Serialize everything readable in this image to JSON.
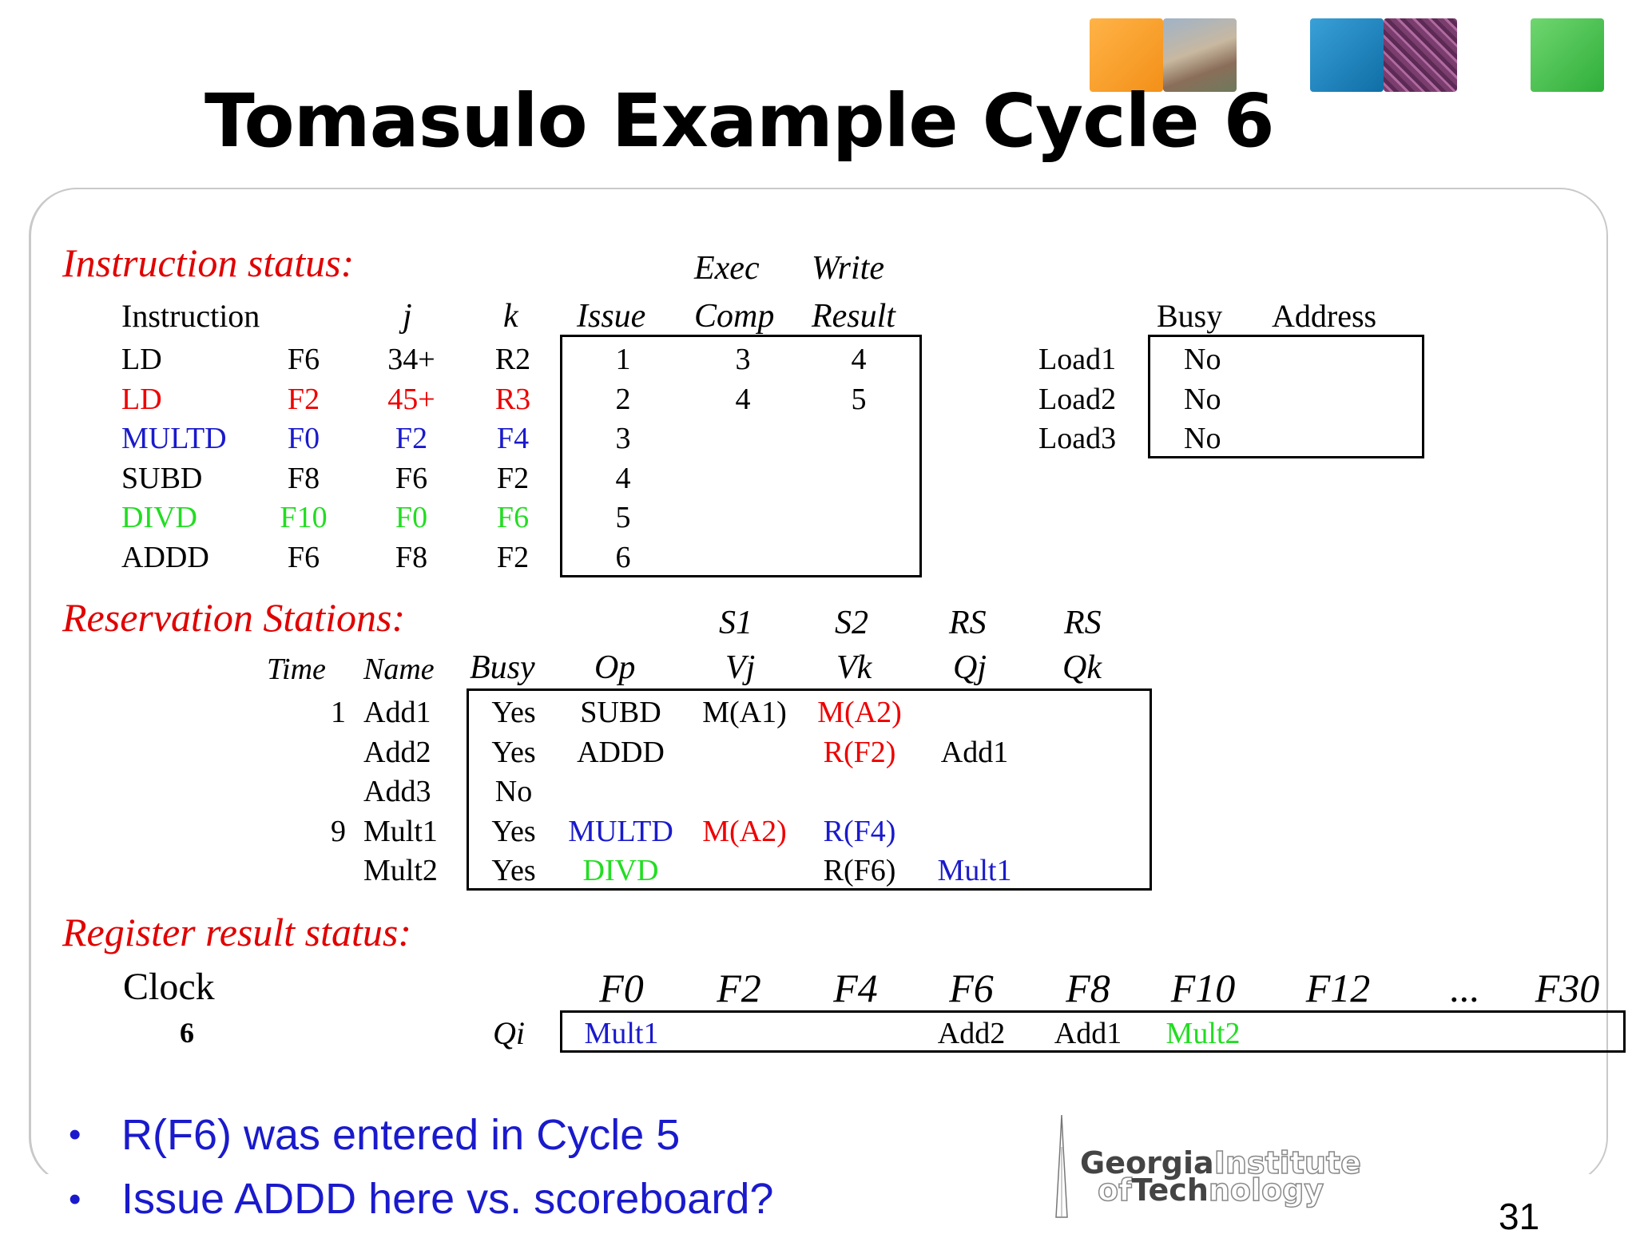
{
  "title": "Tomasulo Example Cycle 6",
  "colors": {
    "red": "#ee0000",
    "blue": "#1a1acc",
    "magenta": "#e000e0",
    "green": "#22dd22",
    "black": "#000000"
  },
  "instruction_status": {
    "label": "Instruction status:",
    "headers": {
      "instruction": "Instruction",
      "j": "j",
      "k": "k",
      "issue": "Issue",
      "exec_top": "Exec",
      "exec_bottom": "Comp",
      "write_top": "Write",
      "write_bottom": "Result"
    },
    "rows": [
      {
        "op": "LD",
        "dest": "F6",
        "j": "34+",
        "k": "R2",
        "issue": "1",
        "exec": "3",
        "write": "4",
        "color": "black"
      },
      {
        "op": "LD",
        "dest": "F2",
        "j": "45+",
        "k": "R3",
        "issue": "2",
        "exec": "4",
        "write": "5",
        "color": "red"
      },
      {
        "op": "MULTD",
        "dest": "F0",
        "j": "F2",
        "k": "F4",
        "issue": "3",
        "exec": "",
        "write": "",
        "color": "blue"
      },
      {
        "op": "SUBD",
        "dest": "F8",
        "j": "F6",
        "k": "F2",
        "issue": "4",
        "exec": "",
        "write": "",
        "color": "mag"
      },
      {
        "op": "DIVD",
        "dest": "F10",
        "j": "F0",
        "k": "F6",
        "issue": "5",
        "exec": "",
        "write": "",
        "color": "green"
      },
      {
        "op": "ADDD",
        "dest": "F6",
        "j": "F8",
        "k": "F2",
        "issue": "6",
        "exec": "",
        "write": "",
        "color": "black"
      }
    ]
  },
  "load_buffers": {
    "headers": {
      "busy": "Busy",
      "address": "Address"
    },
    "rows": [
      {
        "name": "Load1",
        "busy": "No",
        "address": ""
      },
      {
        "name": "Load2",
        "busy": "No",
        "address": ""
      },
      {
        "name": "Load3",
        "busy": "No",
        "address": ""
      }
    ]
  },
  "reservation_stations": {
    "label": "Reservation Stations:",
    "headers": {
      "time": "Time",
      "name": "Name",
      "busy": "Busy",
      "op": "Op",
      "s1": "S1",
      "vj": "Vj",
      "s2": "S2",
      "vk": "Vk",
      "rs1": "RS",
      "qj": "Qj",
      "rs2": "RS",
      "qk": "Qk"
    },
    "rows": [
      {
        "time": "1",
        "name": "Add1",
        "busy": "Yes",
        "op": "SUBD",
        "op_color": "mag",
        "vj": "M(A1)",
        "vj_color": "black",
        "vk": "M(A2)",
        "vk_color": "red",
        "qj": "",
        "qj_color": "black",
        "qk": ""
      },
      {
        "time": "",
        "name": "Add2",
        "busy": "Yes",
        "op": "ADDD",
        "op_color": "black",
        "vj": "",
        "vj_color": "black",
        "vk": "R(F2)",
        "vk_color": "red",
        "qj": "Add1",
        "qj_color": "mag",
        "qk": ""
      },
      {
        "time": "",
        "name": "Add3",
        "busy": "No",
        "op": "",
        "op_color": "black",
        "vj": "",
        "vj_color": "black",
        "vk": "",
        "vk_color": "black",
        "qj": "",
        "qj_color": "black",
        "qk": ""
      },
      {
        "time": "9",
        "name": "Mult1",
        "busy": "Yes",
        "op": "MULTD",
        "op_color": "blue",
        "vj": "M(A2)",
        "vj_color": "red",
        "vk": "R(F4)",
        "vk_color": "blue",
        "qj": "",
        "qj_color": "black",
        "qk": ""
      },
      {
        "time": "",
        "name": "Mult2",
        "busy": "Yes",
        "op": "DIVD",
        "op_color": "green",
        "vj": "",
        "vj_color": "black",
        "vk": "R(F6)",
        "vk_color": "black",
        "qj": "Mult1",
        "qj_color": "blue",
        "qk": ""
      }
    ]
  },
  "register_status": {
    "label": "Register result status:",
    "clock_label": "Clock",
    "clock_value": "6",
    "qi_label": "Qi",
    "registers": [
      "F0",
      "F2",
      "F4",
      "F6",
      "F8",
      "F10",
      "F12",
      "...",
      "F30"
    ],
    "values": [
      {
        "text": "Mult1",
        "color": "blue"
      },
      {
        "text": "",
        "color": "black"
      },
      {
        "text": "",
        "color": "black"
      },
      {
        "text": "Add2",
        "color": "black"
      },
      {
        "text": "Add1",
        "color": "mag"
      },
      {
        "text": "Mult2",
        "color": "green"
      },
      {
        "text": "",
        "color": "black"
      },
      {
        "text": "",
        "color": "black"
      },
      {
        "text": "",
        "color": "black"
      }
    ]
  },
  "bullets": [
    "R(F6) was entered in Cycle 5",
    "Issue ADDD here vs. scoreboard?"
  ],
  "logo": {
    "part1": "Georgia",
    "part2": "Institute",
    "part3": "of",
    "part4": "Tech",
    "part5": "nology"
  },
  "page_number": "31"
}
